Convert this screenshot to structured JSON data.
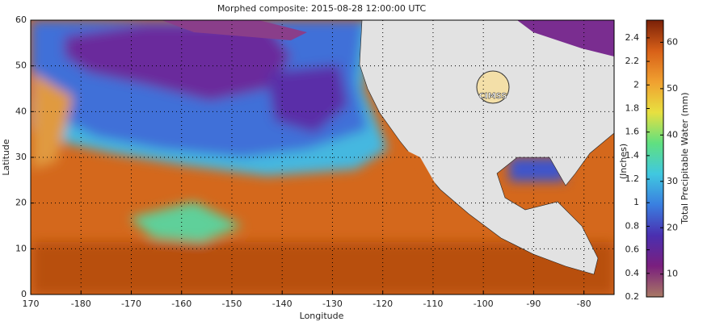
{
  "title": "Morphed composite: 2015-08-28 12:00:00 UTC",
  "map": {
    "x_label": "Longitude",
    "y_label": "Latitude",
    "xlim": [
      170,
      286
    ],
    "ylim": [
      0,
      60
    ],
    "xticks": [
      {
        "value": 170,
        "label": "170"
      },
      {
        "value": 180,
        "label": "-180"
      },
      {
        "value": 190,
        "label": "-170"
      },
      {
        "value": 200,
        "label": "-160"
      },
      {
        "value": 210,
        "label": "-150"
      },
      {
        "value": 220,
        "label": "-140"
      },
      {
        "value": 230,
        "label": "-130"
      },
      {
        "value": 240,
        "label": "-120"
      },
      {
        "value": 250,
        "label": "-110"
      },
      {
        "value": 260,
        "label": "-100"
      },
      {
        "value": 270,
        "label": "-90"
      },
      {
        "value": 280,
        "label": "-80"
      }
    ],
    "yticks": [
      0,
      10,
      20,
      30,
      40,
      50,
      60
    ],
    "grid": true,
    "logo": "CIMSS"
  },
  "colorbar": {
    "left_label": "(Inches)",
    "right_label": "Total Precipitable Water (mm)",
    "left_lim": [
      0.2,
      2.55
    ],
    "left_ticks": [
      0.2,
      0.4,
      0.6,
      0.8,
      1,
      1.2,
      1.4,
      1.6,
      1.8,
      2,
      2.2,
      2.4
    ],
    "right_lim": [
      5.08,
      64.77
    ],
    "right_ticks": [
      10,
      20,
      30,
      40,
      50,
      60
    ],
    "colormap": [
      "#a87864",
      "#7a1f7e",
      "#4a2fb0",
      "#3a7fe0",
      "#40c8e0",
      "#60e080",
      "#e8e040",
      "#f0a030",
      "#d86018",
      "#7a2008"
    ]
  }
}
